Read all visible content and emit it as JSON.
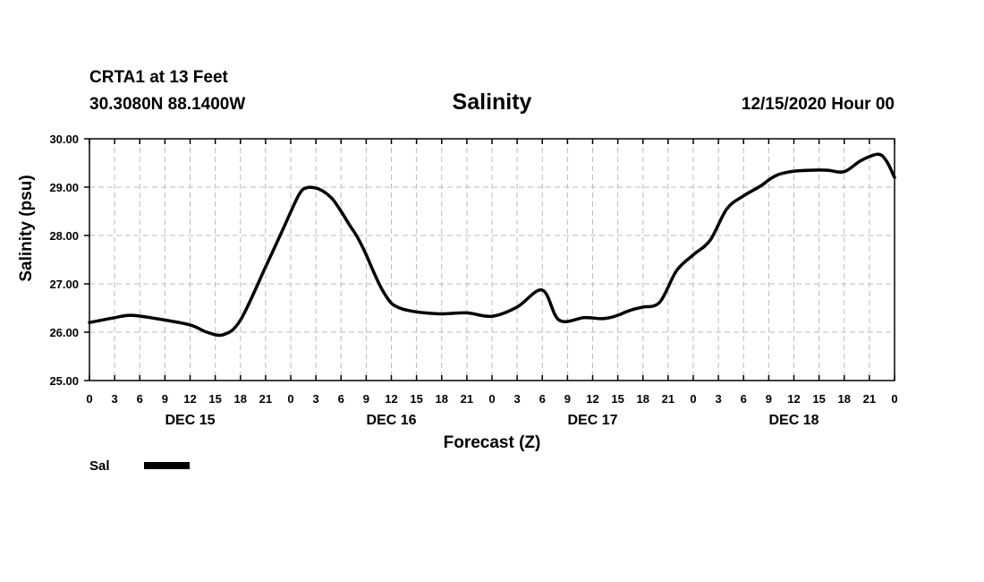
{
  "header": {
    "station": "CRTA1 at 13 Feet",
    "coords": "30.3080N 88.1400W",
    "issued": "12/15/2020 Hour 00"
  },
  "chart_data": {
    "type": "line",
    "title": "Salinity",
    "xlabel": "Forecast (Z)",
    "ylabel": "Salinity (psu)",
    "ylim": [
      25,
      30
    ],
    "y_ticks": [
      "25.00",
      "26.00",
      "27.00",
      "28.00",
      "29.00",
      "30.00"
    ],
    "xlim": [
      0,
      96
    ],
    "x_unit": "forecast hour",
    "x_tick_step": 3,
    "x_tick_labels": [
      "0",
      "3",
      "6",
      "9",
      "12",
      "15",
      "18",
      "21",
      "0",
      "3",
      "6",
      "9",
      "12",
      "15",
      "18",
      "21",
      "0",
      "3",
      "6",
      "9",
      "12",
      "15",
      "18",
      "21",
      "0",
      "3",
      "6",
      "9",
      "12",
      "15",
      "18",
      "21",
      "0"
    ],
    "day_labels": [
      {
        "label": "DEC 15",
        "x": 12
      },
      {
        "label": "DEC 16",
        "x": 36
      },
      {
        "label": "DEC 17",
        "x": 60
      },
      {
        "label": "DEC 18",
        "x": 84
      }
    ],
    "grid": true,
    "legend_position": "bottom-left",
    "series": [
      {
        "name": "Sal",
        "color": "#000000",
        "x": [
          0,
          3,
          5,
          8,
          12,
          14,
          16,
          18,
          21,
          23,
          25,
          26,
          27,
          28,
          29,
          30,
          31,
          32,
          33,
          34,
          35,
          36,
          37,
          38,
          39,
          40,
          42,
          45,
          48,
          51,
          54,
          56,
          59,
          61,
          62,
          63,
          64,
          65,
          66,
          68,
          70,
          72,
          74,
          76,
          78,
          80,
          81,
          82,
          83,
          84,
          86,
          88,
          90,
          92,
          94,
          95,
          96
        ],
        "values": [
          26.2,
          26.3,
          26.35,
          26.28,
          26.15,
          26.0,
          25.95,
          26.25,
          27.35,
          28.1,
          28.85,
          28.99,
          28.98,
          28.9,
          28.75,
          28.5,
          28.22,
          27.95,
          27.6,
          27.2,
          26.85,
          26.6,
          26.5,
          26.45,
          26.42,
          26.4,
          26.38,
          26.4,
          26.33,
          26.52,
          26.87,
          26.25,
          26.3,
          26.28,
          26.3,
          26.35,
          26.42,
          26.48,
          26.52,
          26.62,
          27.27,
          27.6,
          27.9,
          28.55,
          28.82,
          29.02,
          29.15,
          29.25,
          29.3,
          29.33,
          29.35,
          29.35,
          29.32,
          29.55,
          29.68,
          29.55,
          29.2
        ]
      }
    ]
  }
}
